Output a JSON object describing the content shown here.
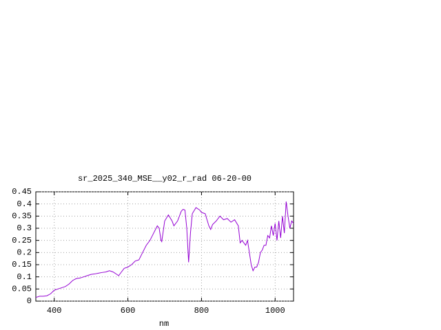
{
  "chart_data": {
    "type": "line",
    "title": "sr_2025_340_MSE__y02_r_rad 06-20-00",
    "x_label": "nm",
    "x": [
      350,
      360,
      370,
      380,
      390,
      400,
      410,
      420,
      430,
      440,
      450,
      460,
      470,
      480,
      490,
      500,
      510,
      520,
      530,
      540,
      550,
      560,
      570,
      575,
      580,
      590,
      600,
      610,
      620,
      630,
      640,
      650,
      660,
      670,
      680,
      685,
      690,
      692,
      700,
      710,
      720,
      725,
      735,
      745,
      750,
      755,
      760,
      765,
      770,
      775,
      785,
      795,
      800,
      810,
      820,
      825,
      830,
      840,
      850,
      860,
      870,
      880,
      890,
      900,
      905,
      910,
      920,
      925,
      930,
      935,
      940,
      945,
      950,
      955,
      960,
      965,
      970,
      975,
      980,
      985,
      990,
      995,
      1000,
      1005,
      1010,
      1015,
      1020,
      1025,
      1030,
      1035,
      1040,
      1045,
      1050
    ],
    "series": [
      {
        "name": "sr_2025_340_MSE__y02_r_rad 06-20-00",
        "color": "#9400d3",
        "values": [
          0.015,
          0.02,
          0.02,
          0.022,
          0.03,
          0.045,
          0.05,
          0.055,
          0.06,
          0.07,
          0.085,
          0.093,
          0.095,
          0.1,
          0.105,
          0.11,
          0.112,
          0.115,
          0.118,
          0.12,
          0.125,
          0.12,
          0.11,
          0.105,
          0.115,
          0.135,
          0.14,
          0.15,
          0.165,
          0.17,
          0.2,
          0.23,
          0.25,
          0.28,
          0.31,
          0.3,
          0.25,
          0.245,
          0.33,
          0.355,
          0.33,
          0.31,
          0.33,
          0.37,
          0.378,
          0.375,
          0.3,
          0.16,
          0.28,
          0.36,
          0.385,
          0.375,
          0.365,
          0.36,
          0.31,
          0.295,
          0.315,
          0.33,
          0.35,
          0.335,
          0.34,
          0.325,
          0.335,
          0.31,
          0.24,
          0.25,
          0.23,
          0.25,
          0.2,
          0.15,
          0.125,
          0.14,
          0.14,
          0.16,
          0.2,
          0.21,
          0.23,
          0.23,
          0.27,
          0.26,
          0.31,
          0.27,
          0.32,
          0.25,
          0.33,
          0.26,
          0.35,
          0.28,
          0.41,
          0.35,
          0.3,
          0.33,
          0.32
        ]
      }
    ],
    "xlim": [
      350,
      1050
    ],
    "xticks": [
      400,
      600,
      800,
      1000
    ],
    "ylim": [
      0,
      0.45
    ],
    "yticks": [
      0,
      0.05,
      0.1,
      0.15,
      0.2,
      0.25,
      0.3,
      0.35,
      0.4,
      0.45
    ],
    "grid": true
  }
}
